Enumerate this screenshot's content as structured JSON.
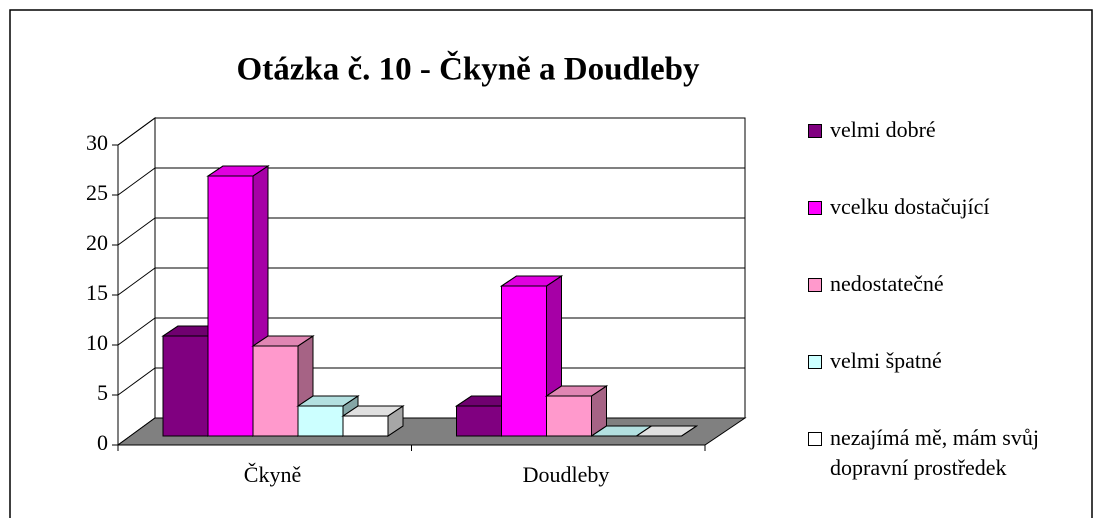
{
  "chart_data": {
    "type": "bar3d",
    "title": "Otázka č. 10 - Čkyně a Doudleby",
    "categories": [
      "Čkyně",
      "Doudleby"
    ],
    "series": [
      {
        "name": "velmi dobré",
        "color": "#800080",
        "values": [
          10,
          3
        ]
      },
      {
        "name": "vcelku dostačující",
        "color": "#ff00ff",
        "values": [
          26,
          15
        ]
      },
      {
        "name": "nedostatečné",
        "color": "#ff99cc",
        "values": [
          9,
          4
        ]
      },
      {
        "name": "velmi špatné",
        "color": "#ccffff",
        "values": [
          3,
          0
        ]
      },
      {
        "name": "nezajímá mě, mám svůj dopravní prostředek",
        "color": "#ffffff",
        "values": [
          2,
          0
        ]
      }
    ],
    "ylim": [
      0,
      30
    ],
    "yticks": [
      0,
      5,
      10,
      15,
      20,
      25,
      30
    ],
    "grid": true,
    "legend": "right"
  }
}
